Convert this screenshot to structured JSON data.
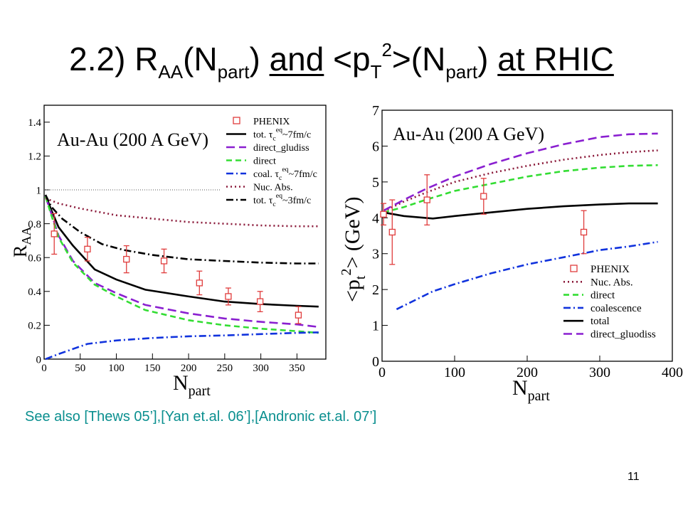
{
  "slide": {
    "title_num": "2.2) R",
    "title_aa": "AA",
    "title_open1": "(N",
    "title_part1": "part",
    "title_close1": ")",
    "title_and": "and",
    "title_pt": "<p",
    "title_T": "T",
    "title_2": "2",
    "title_gt": ">(N",
    "title_part2": "part",
    "title_close2": ")",
    "title_rhic": "at RHIC",
    "see_also": "See also [Thews 05’],[Yan et.al. 06’],[Andronic et.al. 07’]",
    "page_number": "11"
  },
  "chart_data": [
    {
      "type": "line",
      "annotation": "Au-Au (200 A GeV)",
      "xlabel": "N",
      "xlabel_sub": "part",
      "ylabel": "R",
      "ylabel_sub": "AA",
      "xlim": [
        0,
        390
      ],
      "ylim": [
        0,
        1.5
      ],
      "xticks": [
        0,
        50,
        100,
        150,
        200,
        250,
        300,
        350
      ],
      "yticks": [
        0,
        0.2,
        0.4,
        0.6,
        0.8,
        1,
        1.2,
        1.4
      ],
      "reference_line_y": 1,
      "legend_position": "top-right",
      "legend": [
        {
          "label": "PHENIX",
          "style": "marker",
          "color": "#e03c3c"
        },
        {
          "label": "tot. τ",
          "sub": "c",
          "sup": "eq",
          "tail": "~7fm/c",
          "style": "solid",
          "color": "#000000"
        },
        {
          "label": "direct_gludiss",
          "style": "longdash",
          "color": "#8a1fd0"
        },
        {
          "label": "direct",
          "style": "dash",
          "color": "#33dd33"
        },
        {
          "label": "coal. τ",
          "sub": "c",
          "sup": "eq",
          "tail": "~7fm/c",
          "style": "dashdot",
          "color": "#1133dd"
        },
        {
          "label": "Nuc. Abs.",
          "style": "dot",
          "color": "#8b1a3a"
        },
        {
          "label": "tot. τ",
          "sub": "c",
          "sup": "eq",
          "tail": "~3fm/c",
          "style": "dashdot",
          "color": "#000000"
        }
      ],
      "phenix": [
        {
          "x": 14,
          "y": 0.74,
          "yerr": 0.12
        },
        {
          "x": 60,
          "y": 0.65,
          "yerr": 0.07
        },
        {
          "x": 114,
          "y": 0.59,
          "yerr": 0.08
        },
        {
          "x": 166,
          "y": 0.58,
          "yerr": 0.07
        },
        {
          "x": 215,
          "y": 0.45,
          "yerr": 0.07
        },
        {
          "x": 255,
          "y": 0.37,
          "yerr": 0.05
        },
        {
          "x": 299,
          "y": 0.34,
          "yerr": 0.06
        },
        {
          "x": 352,
          "y": 0.26,
          "yerr": 0.05
        }
      ],
      "series": [
        {
          "name": "tot. τ_c^eq~7fm/c",
          "style": "solid",
          "color": "#000000",
          "points": [
            [
              2,
              0.97
            ],
            [
              10,
              0.88
            ],
            [
              20,
              0.78
            ],
            [
              40,
              0.67
            ],
            [
              70,
              0.53
            ],
            [
              100,
              0.47
            ],
            [
              140,
              0.41
            ],
            [
              200,
              0.37
            ],
            [
              250,
              0.34
            ],
            [
              300,
              0.325
            ],
            [
              350,
              0.315
            ],
            [
              380,
              0.31
            ]
          ]
        },
        {
          "name": "direct_gludiss",
          "style": "longdash",
          "color": "#8a1fd0",
          "points": [
            [
              2,
              0.96
            ],
            [
              10,
              0.86
            ],
            [
              20,
              0.73
            ],
            [
              40,
              0.58
            ],
            [
              70,
              0.45
            ],
            [
              100,
              0.39
            ],
            [
              140,
              0.32
            ],
            [
              200,
              0.27
            ],
            [
              250,
              0.24
            ],
            [
              300,
              0.22
            ],
            [
              350,
              0.205
            ],
            [
              380,
              0.19
            ]
          ]
        },
        {
          "name": "direct",
          "style": "dash",
          "color": "#33dd33",
          "points": [
            [
              2,
              0.96
            ],
            [
              10,
              0.85
            ],
            [
              20,
              0.72
            ],
            [
              40,
              0.57
            ],
            [
              70,
              0.44
            ],
            [
              100,
              0.37
            ],
            [
              140,
              0.29
            ],
            [
              200,
              0.23
            ],
            [
              250,
              0.2
            ],
            [
              300,
              0.18
            ],
            [
              350,
              0.165
            ],
            [
              380,
              0.155
            ]
          ]
        },
        {
          "name": "coal. τ_c^eq~7fm/c",
          "style": "dashdot",
          "color": "#1133dd",
          "points": [
            [
              2,
              0.0
            ],
            [
              20,
              0.03
            ],
            [
              40,
              0.06
            ],
            [
              60,
              0.09
            ],
            [
              100,
              0.11
            ],
            [
              150,
              0.125
            ],
            [
              200,
              0.135
            ],
            [
              250,
              0.14
            ],
            [
              300,
              0.148
            ],
            [
              350,
              0.155
            ],
            [
              380,
              0.158
            ]
          ]
        },
        {
          "name": "Nuc. Abs.",
          "style": "dot",
          "color": "#8b1a3a",
          "points": [
            [
              2,
              0.95
            ],
            [
              20,
              0.92
            ],
            [
              50,
              0.89
            ],
            [
              100,
              0.85
            ],
            [
              150,
              0.83
            ],
            [
              200,
              0.81
            ],
            [
              250,
              0.8
            ],
            [
              300,
              0.79
            ],
            [
              350,
              0.785
            ],
            [
              380,
              0.785
            ]
          ]
        },
        {
          "name": "tot. τ_c^eq~3fm/c",
          "style": "dashdot",
          "color": "#000000",
          "points": [
            [
              2,
              0.97
            ],
            [
              10,
              0.9
            ],
            [
              25,
              0.83
            ],
            [
              50,
              0.75
            ],
            [
              80,
              0.68
            ],
            [
              110,
              0.645
            ],
            [
              150,
              0.615
            ],
            [
              200,
              0.59
            ],
            [
              250,
              0.58
            ],
            [
              300,
              0.57
            ],
            [
              350,
              0.565
            ],
            [
              380,
              0.565
            ]
          ]
        }
      ]
    },
    {
      "type": "line",
      "annotation": "Au-Au (200 A GeV)",
      "xlabel": "N",
      "xlabel_sub": "part",
      "ylabel_pre": "<p",
      "ylabel_sub": "t",
      "ylabel_sup": "2",
      "ylabel_post": "> (GeV)",
      "xlim": [
        0,
        400
      ],
      "ylim": [
        0,
        7
      ],
      "xticks": [
        0,
        100,
        200,
        300,
        400
      ],
      "yticks": [
        0,
        1,
        2,
        3,
        4,
        5,
        6,
        7
      ],
      "legend_position": "bottom-right",
      "legend": [
        {
          "label": "PHENIX",
          "style": "marker",
          "color": "#e03c3c"
        },
        {
          "label": "Nuc. Abs.",
          "style": "dot",
          "color": "#8b1a3a"
        },
        {
          "label": "direct",
          "style": "dash",
          "color": "#33dd33"
        },
        {
          "label": "coalescence",
          "style": "dashdot",
          "color": "#1133dd"
        },
        {
          "label": "total",
          "style": "solid",
          "color": "#000000"
        },
        {
          "label": "direct_gluodiss",
          "style": "longdash",
          "color": "#8a1fd0"
        }
      ],
      "phenix": [
        {
          "x": 2,
          "y": 4.1,
          "yerr": 0.3
        },
        {
          "x": 14,
          "y": 3.6,
          "yerr": 0.9
        },
        {
          "x": 62,
          "y": 4.5,
          "yerr": 0.7
        },
        {
          "x": 140,
          "y": 4.6,
          "yerr": 0.5
        },
        {
          "x": 278,
          "y": 3.6,
          "yerr": 0.6
        }
      ],
      "series": [
        {
          "name": "Nuc. Abs.",
          "style": "dot",
          "color": "#8b1a3a",
          "points": [
            [
              2,
              4.18
            ],
            [
              30,
              4.45
            ],
            [
              60,
              4.7
            ],
            [
              100,
              5.0
            ],
            [
              150,
              5.25
            ],
            [
              200,
              5.45
            ],
            [
              250,
              5.62
            ],
            [
              300,
              5.75
            ],
            [
              340,
              5.83
            ],
            [
              380,
              5.88
            ]
          ]
        },
        {
          "name": "direct",
          "style": "dash",
          "color": "#33dd33",
          "points": [
            [
              2,
              4.15
            ],
            [
              30,
              4.3
            ],
            [
              60,
              4.5
            ],
            [
              100,
              4.75
            ],
            [
              150,
              4.95
            ],
            [
              200,
              5.15
            ],
            [
              250,
              5.3
            ],
            [
              300,
              5.4
            ],
            [
              340,
              5.45
            ],
            [
              380,
              5.47
            ]
          ]
        },
        {
          "name": "coalescence",
          "style": "dashdot",
          "color": "#1133dd",
          "points": [
            [
              20,
              1.45
            ],
            [
              50,
              1.75
            ],
            [
              70,
              1.95
            ],
            [
              100,
              2.15
            ],
            [
              150,
              2.45
            ],
            [
              200,
              2.7
            ],
            [
              250,
              2.9
            ],
            [
              300,
              3.1
            ],
            [
              340,
              3.2
            ],
            [
              380,
              3.33
            ]
          ]
        },
        {
          "name": "total",
          "style": "solid",
          "color": "#000000",
          "points": [
            [
              2,
              4.15
            ],
            [
              30,
              4.05
            ],
            [
              70,
              3.98
            ],
            [
              100,
              4.05
            ],
            [
              150,
              4.15
            ],
            [
              200,
              4.25
            ],
            [
              250,
              4.32
            ],
            [
              300,
              4.37
            ],
            [
              340,
              4.4
            ],
            [
              380,
              4.4
            ]
          ]
        },
        {
          "name": "direct_gluodiss",
          "style": "longdash",
          "color": "#8a1fd0",
          "points": [
            [
              2,
              4.2
            ],
            [
              30,
              4.5
            ],
            [
              60,
              4.8
            ],
            [
              100,
              5.15
            ],
            [
              150,
              5.5
            ],
            [
              200,
              5.8
            ],
            [
              250,
              6.05
            ],
            [
              300,
              6.25
            ],
            [
              340,
              6.33
            ],
            [
              380,
              6.35
            ]
          ]
        }
      ]
    }
  ]
}
